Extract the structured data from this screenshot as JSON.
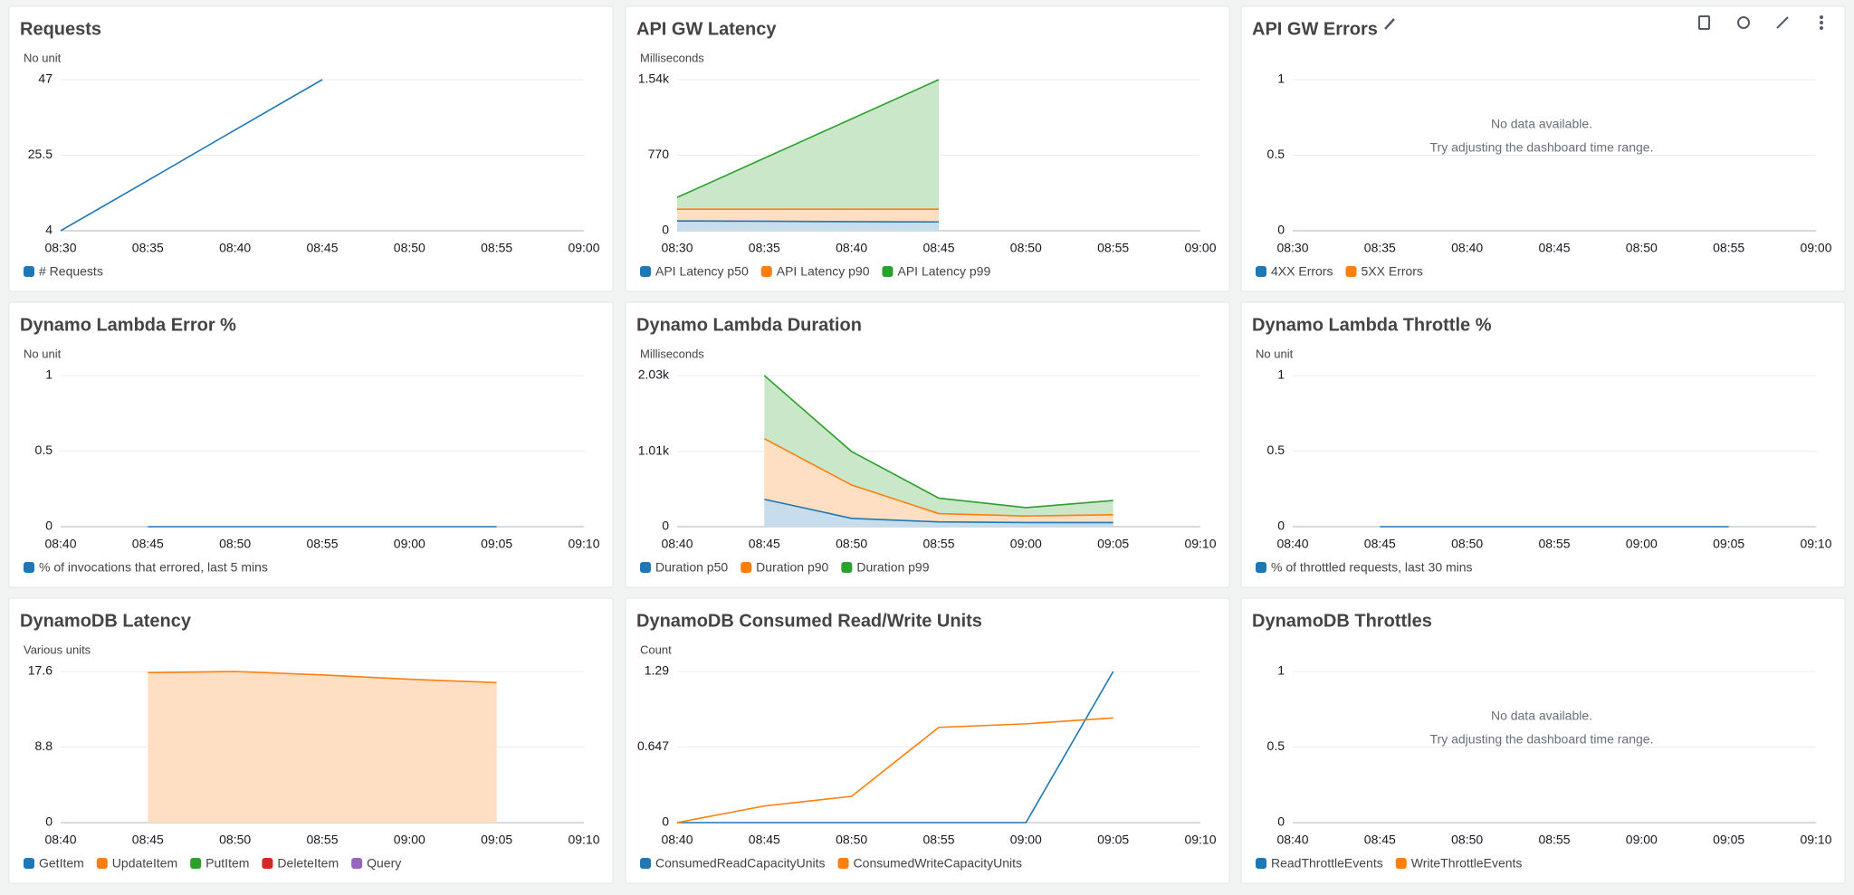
{
  "chart_data": [
    {
      "type": "line",
      "title": "Requests",
      "subtitle": "No unit",
      "x": [
        "08:30",
        "08:35",
        "08:40",
        "08:45",
        "08:50",
        "08:55",
        "09:00"
      ],
      "series": [
        {
          "name": "# Requests",
          "color": "#1f77b4",
          "values": [
            4,
            18.3,
            32.7,
            47,
            null,
            null,
            null
          ]
        }
      ],
      "ylim": [
        4,
        47
      ],
      "yticks": [
        4,
        25.5,
        47
      ],
      "grid": true
    },
    {
      "type": "area",
      "title": "API GW Latency",
      "subtitle": "Milliseconds",
      "x": [
        "08:30",
        "08:35",
        "08:40",
        "08:45",
        "08:50",
        "08:55",
        "09:00"
      ],
      "series": [
        {
          "name": "API Latency p50",
          "color": "#1f77b4",
          "values": [
            100,
            97,
            93,
            90,
            null,
            null,
            null
          ]
        },
        {
          "name": "API Latency p90",
          "color": "#ff7f0e",
          "values": [
            220,
            220,
            220,
            220,
            null,
            null,
            null
          ]
        },
        {
          "name": "API Latency p99",
          "color": "#2ca02c",
          "values": [
            340,
            740,
            1140,
            1540,
            null,
            null,
            null
          ]
        }
      ],
      "ylim": [
        0,
        1540
      ],
      "yticks": [
        0,
        770,
        {
          "value": 1540,
          "label": "1.54k"
        }
      ],
      "grid": true
    },
    {
      "type": "line",
      "title": "API GW Errors",
      "x": [
        "08:30",
        "08:35",
        "08:40",
        "08:45",
        "08:50",
        "08:55",
        "09:00"
      ],
      "series": [
        {
          "name": "4XX Errors",
          "color": "#1f77b4",
          "values": [
            null,
            null,
            null,
            null,
            null,
            null,
            null
          ]
        },
        {
          "name": "5XX Errors",
          "color": "#ff7f0e",
          "values": [
            null,
            null,
            null,
            null,
            null,
            null,
            null
          ]
        }
      ],
      "ylim": [
        0,
        1
      ],
      "yticks": [
        0,
        0.5,
        1
      ],
      "grid": true,
      "message": "No data available.",
      "hint": "Try adjusting the dashboard time range."
    },
    {
      "type": "line",
      "title": "Dynamo Lambda Error %",
      "subtitle": "No unit",
      "x": [
        "08:40",
        "08:45",
        "08:50",
        "08:55",
        "09:00",
        "09:05",
        "09:10"
      ],
      "series": [
        {
          "name": "% of invocations that errored, last 5 mins",
          "color": "#1f77b4",
          "values": [
            null,
            0,
            0,
            0,
            0,
            0,
            null
          ]
        }
      ],
      "ylim": [
        0,
        1
      ],
      "yticks": [
        0,
        0.5,
        1
      ],
      "grid": true
    },
    {
      "type": "area",
      "title": "Dynamo Lambda Duration",
      "subtitle": "Milliseconds",
      "x": [
        "08:40",
        "08:45",
        "08:50",
        "08:55",
        "09:00",
        "09:05",
        "09:10"
      ],
      "series": [
        {
          "name": "Duration p50",
          "color": "#1f77b4",
          "values": [
            null,
            368,
            112,
            64,
            56,
            56,
            null
          ]
        },
        {
          "name": "Duration p90",
          "color": "#ff7f0e",
          "values": [
            null,
            1183,
            560,
            176,
            144,
            160,
            null
          ]
        },
        {
          "name": "Duration p99",
          "color": "#2ca02c",
          "values": [
            null,
            2030,
            1010,
            384,
            256,
            352,
            null
          ]
        }
      ],
      "ylim": [
        0,
        2030
      ],
      "yticks": [
        0,
        {
          "value": 1010,
          "label": "1.01k"
        },
        {
          "value": 2030,
          "label": "2.03k"
        }
      ],
      "grid": true
    },
    {
      "type": "line",
      "title": "Dynamo Lambda Throttle %",
      "subtitle": "No unit",
      "x": [
        "08:40",
        "08:45",
        "08:50",
        "08:55",
        "09:00",
        "09:05",
        "09:10"
      ],
      "series": [
        {
          "name": "% of throttled requests, last 30 mins",
          "color": "#1f77b4",
          "values": [
            null,
            0,
            0,
            0,
            0,
            0,
            null
          ]
        }
      ],
      "ylim": [
        0,
        1
      ],
      "yticks": [
        0,
        0.5,
        1
      ],
      "grid": true
    },
    {
      "type": "area",
      "title": "DynamoDB Latency",
      "subtitle": "Various units",
      "x": [
        "08:40",
        "08:45",
        "08:50",
        "08:55",
        "09:00",
        "09:05",
        "09:10"
      ],
      "series": [
        {
          "name": "GetItem",
          "color": "#1f77b4",
          "values": [
            null,
            null,
            null,
            null,
            null,
            null,
            null
          ]
        },
        {
          "name": "UpdateItem",
          "color": "#ff7f0e",
          "values": [
            null,
            17.46,
            17.6,
            17.2,
            16.7,
            16.3,
            null
          ]
        },
        {
          "name": "PutItem",
          "color": "#2ca02c",
          "values": [
            null,
            null,
            null,
            null,
            null,
            null,
            null
          ]
        },
        {
          "name": "DeleteItem",
          "color": "#d62728",
          "values": [
            null,
            null,
            null,
            null,
            null,
            null,
            null
          ]
        },
        {
          "name": "Query",
          "color": "#9467bd",
          "values": [
            null,
            null,
            null,
            null,
            null,
            null,
            null
          ]
        }
      ],
      "ylim": [
        0,
        17.6
      ],
      "yticks": [
        0,
        8.8,
        17.6
      ],
      "grid": true
    },
    {
      "type": "line",
      "title": "DynamoDB Consumed Read/Write Units",
      "subtitle": "Count",
      "x": [
        "08:40",
        "08:45",
        "08:50",
        "08:55",
        "09:00",
        "09:05",
        "09:10"
      ],
      "series": [
        {
          "name": "ConsumedReadCapacityUnits",
          "color": "#1f77b4",
          "values": [
            0,
            0,
            0,
            0,
            0,
            1.29,
            null
          ]
        },
        {
          "name": "ConsumedWriteCapacityUnits",
          "color": "#ff7f0e",
          "values": [
            0,
            0.142,
            0.224,
            0.813,
            0.843,
            0.894,
            null
          ]
        }
      ],
      "ylim": [
        0,
        1.29
      ],
      "yticks": [
        0,
        0.647,
        1.29
      ],
      "grid": true
    },
    {
      "type": "line",
      "title": "DynamoDB Throttles",
      "x": [
        "08:40",
        "08:45",
        "08:50",
        "08:55",
        "09:00",
        "09:05",
        "09:10"
      ],
      "series": [
        {
          "name": "ReadThrottleEvents",
          "color": "#1f77b4",
          "values": [
            null,
            null,
            null,
            null,
            null,
            null,
            null
          ]
        },
        {
          "name": "WriteThrottleEvents",
          "color": "#ff7f0e",
          "values": [
            null,
            null,
            null,
            null,
            null,
            null,
            null
          ]
        }
      ],
      "ylim": [
        0,
        1
      ],
      "yticks": [
        0,
        0.5,
        1
      ],
      "grid": true,
      "message": "No data available.",
      "hint": "Try adjusting the dashboard time range."
    }
  ]
}
